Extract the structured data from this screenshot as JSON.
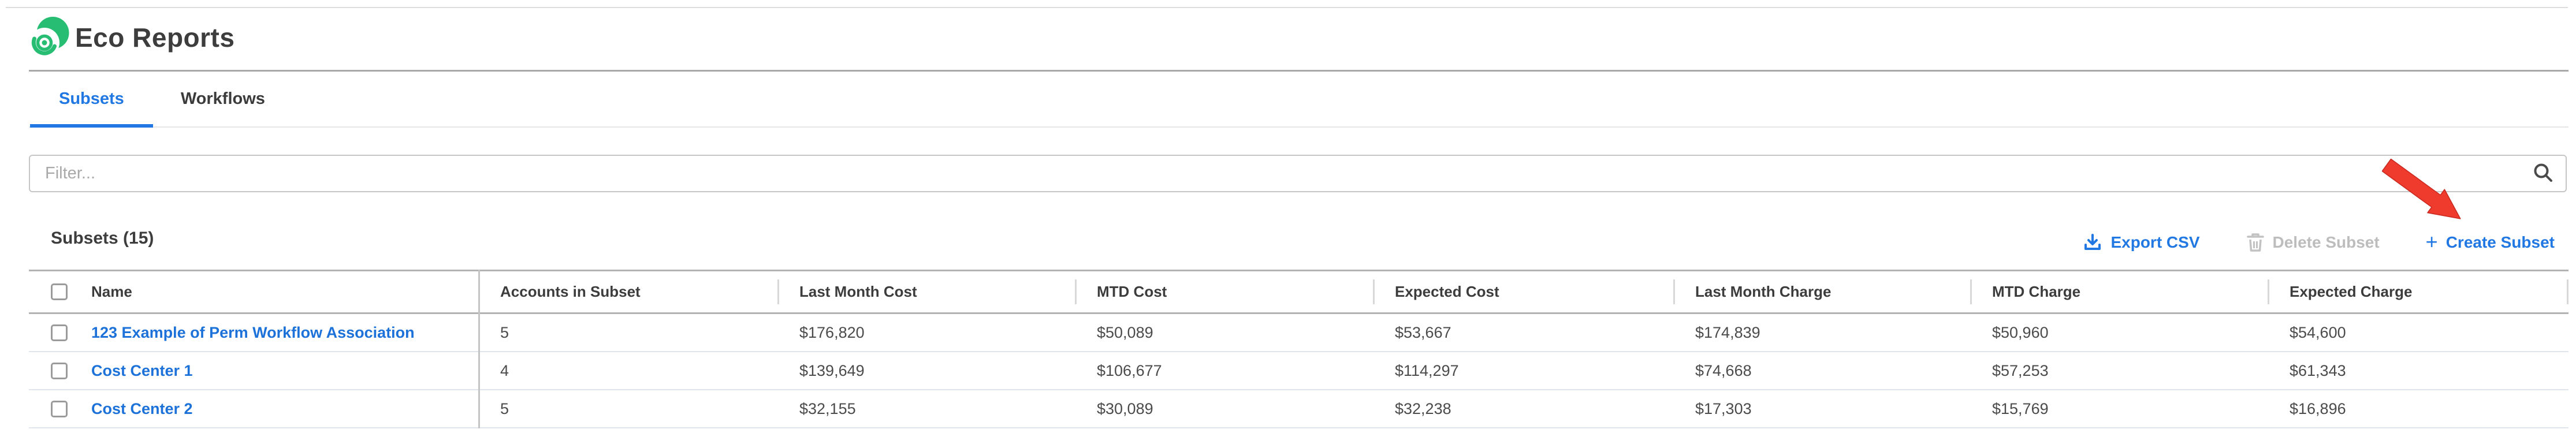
{
  "app": {
    "title": "Eco Reports"
  },
  "tabs": [
    {
      "label": "Subsets",
      "active": true
    },
    {
      "label": "Workflows",
      "active": false
    }
  ],
  "filter": {
    "placeholder": "Filter...",
    "value": "",
    "icon": "search-icon"
  },
  "list_header": {
    "title": "Subsets (15)",
    "count": 15
  },
  "toolbar": {
    "export_csv": {
      "label": "Export CSV",
      "icon": "download-icon",
      "enabled": true
    },
    "delete_subset": {
      "label": "Delete Subset",
      "icon": "trash-icon",
      "enabled": false
    },
    "create_subset": {
      "label": "Create Subset",
      "icon": "plus-icon",
      "enabled": true
    }
  },
  "annotation": {
    "type": "red-arrow",
    "points_at": "create-subset-button",
    "color": "#ef3b2d"
  },
  "table": {
    "columns": [
      "Name",
      "Accounts in Subset",
      "Last Month Cost",
      "MTD Cost",
      "Expected Cost",
      "Last Month Charge",
      "MTD Charge",
      "Expected Charge"
    ],
    "rows": [
      {
        "selected": false,
        "name": "123 Example of Perm Workflow Association",
        "accounts_in_subset": "5",
        "last_month_cost": "$176,820",
        "mtd_cost": "$50,089",
        "expected_cost": "$53,667",
        "last_month_charge": "$174,839",
        "mtd_charge": "$50,960",
        "expected_charge": "$54,600"
      },
      {
        "selected": false,
        "name": "Cost Center 1",
        "accounts_in_subset": "4",
        "last_month_cost": "$139,649",
        "mtd_cost": "$106,677",
        "expected_cost": "$114,297",
        "last_month_charge": "$74,668",
        "mtd_charge": "$57,253",
        "expected_charge": "$61,343"
      },
      {
        "selected": false,
        "name": "Cost Center 2",
        "accounts_in_subset": "5",
        "last_month_cost": "$32,155",
        "mtd_cost": "$30,089",
        "expected_cost": "$32,238",
        "last_month_charge": "$17,303",
        "mtd_charge": "$15,769",
        "expected_charge": "$16,896"
      }
    ]
  },
  "colors": {
    "accent_blue": "#2178e2",
    "link_blue": "#1d72d9",
    "logo_green": "#27be74",
    "arrow_red": "#ef3b2d",
    "disabled_gray": "#bdbdbd",
    "heavy_border": "#b3b3b3",
    "row_divider": "#e0e5eb"
  }
}
